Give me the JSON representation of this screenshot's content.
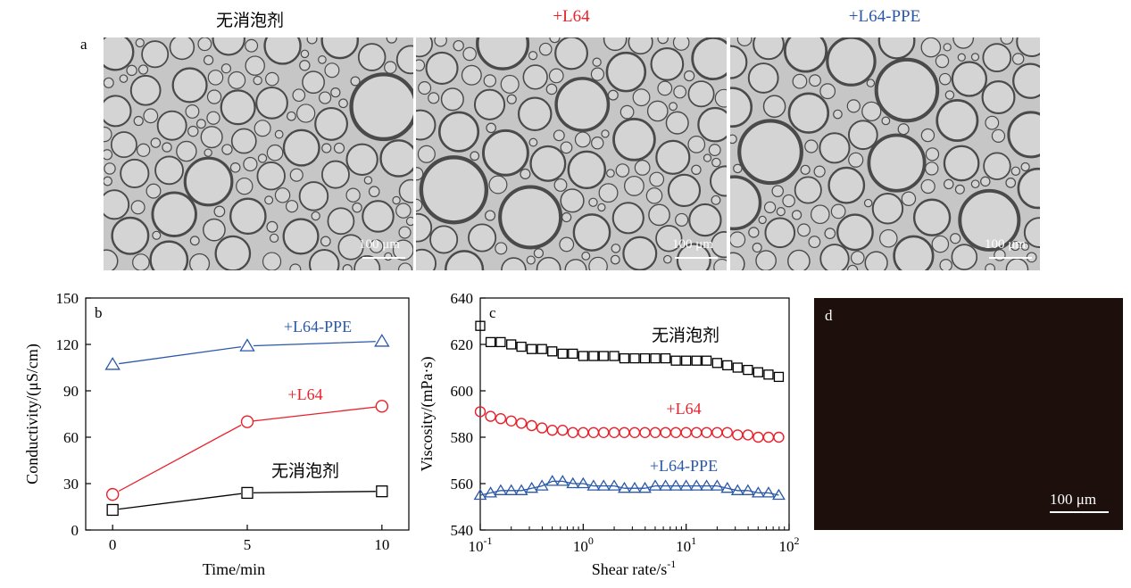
{
  "panel_a": {
    "letter": "a",
    "titles": [
      "无消泡剂",
      "+L64",
      "+L64-PPE"
    ],
    "title_colors": [
      "#000000",
      "#e8202a",
      "#2a58a8"
    ],
    "scale_label": "100 μm"
  },
  "panel_d": {
    "letter": "d",
    "scale_label": "100 μm"
  },
  "colors": {
    "black": "#000000",
    "red": "#e8202a",
    "blue": "#2a58a8"
  },
  "chart_data": [
    {
      "panel": "b",
      "type": "line",
      "xlabel": "Time/min",
      "ylabel": "Conductivity/(μS/cm)",
      "xlim": [
        -1,
        11
      ],
      "ylim": [
        0,
        150
      ],
      "xticks": [
        0,
        5,
        10
      ],
      "yticks": [
        0,
        30,
        60,
        90,
        120,
        150
      ],
      "x": [
        0,
        5,
        10
      ],
      "series": [
        {
          "name": "+L64-PPE",
          "values": [
            107,
            119,
            122
          ],
          "color": "#2a58a8",
          "marker": "triangle"
        },
        {
          "name": "+L64",
          "values": [
            23,
            70,
            80
          ],
          "color": "#e8202a",
          "marker": "circle"
        },
        {
          "name": "无消泡剂",
          "values": [
            13,
            24,
            25
          ],
          "color": "#000000",
          "marker": "square"
        }
      ]
    },
    {
      "panel": "c",
      "type": "scatter",
      "xlabel": "Shear rate/s",
      "xlabel_sup": "-1",
      "ylabel": "Viscosity/(mPa·s)",
      "xscale": "log",
      "xlim": [
        0.1,
        100
      ],
      "ylim": [
        540,
        640
      ],
      "yticks": [
        540,
        560,
        580,
        600,
        620,
        640
      ],
      "xtick_labels": [
        {
          "base": "10",
          "exp": "-1"
        },
        {
          "base": "10",
          "exp": "0"
        },
        {
          "base": "10",
          "exp": "1"
        },
        {
          "base": "10",
          "exp": "2"
        }
      ],
      "x": [
        0.1,
        0.126,
        0.158,
        0.2,
        0.251,
        0.316,
        0.398,
        0.501,
        0.631,
        0.794,
        1.0,
        1.26,
        1.58,
        2.0,
        2.51,
        3.16,
        3.98,
        5.01,
        6.31,
        7.94,
        10.0,
        12.6,
        15.8,
        20.0,
        25.1,
        31.6,
        39.8,
        50.1,
        63.1,
        79.4
      ],
      "series": [
        {
          "name": "无消泡剂",
          "color": "#000000",
          "marker": "square",
          "values": [
            628,
            621,
            621,
            620,
            619,
            618,
            618,
            617,
            616,
            616,
            615,
            615,
            615,
            615,
            614,
            614,
            614,
            614,
            614,
            613,
            613,
            613,
            613,
            612,
            611,
            610,
            609,
            608,
            607,
            606
          ]
        },
        {
          "name": "+L64",
          "color": "#e8202a",
          "marker": "circle",
          "values": [
            591,
            589,
            588,
            587,
            586,
            585,
            584,
            583,
            583,
            582,
            582,
            582,
            582,
            582,
            582,
            582,
            582,
            582,
            582,
            582,
            582,
            582,
            582,
            582,
            582,
            581,
            581,
            580,
            580,
            580
          ]
        },
        {
          "name": "+L64-PPE",
          "color": "#2a58a8",
          "marker": "triangle",
          "values": [
            555,
            556,
            557,
            557,
            557,
            558,
            559,
            561,
            561,
            560,
            560,
            559,
            559,
            559,
            558,
            558,
            558,
            559,
            559,
            559,
            559,
            559,
            559,
            559,
            558,
            557,
            557,
            556,
            556,
            555
          ]
        }
      ]
    }
  ]
}
